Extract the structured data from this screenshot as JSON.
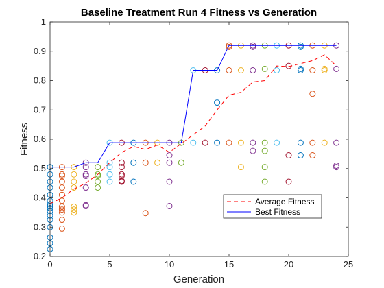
{
  "chart_data": {
    "type": "scatter",
    "title": "Baseline Treatment Run 4 Fitness vs Generation",
    "xlabel": "Generation",
    "ylabel": "Fitness",
    "xlim": [
      0,
      25
    ],
    "ylim": [
      0.2,
      1
    ],
    "xticks": [
      "0",
      "5",
      "10",
      "15",
      "20",
      "25"
    ],
    "yticks": [
      "0.2",
      "0.3",
      "0.4",
      "0.5",
      "0.6",
      "0.7",
      "0.8",
      "0.9",
      "1"
    ],
    "grid": false,
    "legend_position": "lower-right",
    "series": [
      {
        "name": "Average Fitness",
        "style": "dashed",
        "color": "#ff0000",
        "x": [
          0,
          1,
          2,
          3,
          4,
          5,
          6,
          7,
          8,
          9,
          10,
          11,
          12,
          13,
          14,
          15,
          16,
          17,
          18,
          19,
          20,
          21,
          22,
          23,
          24
        ],
        "y": [
          0.38,
          0.4,
          0.43,
          0.45,
          0.48,
          0.52,
          0.555,
          0.575,
          0.565,
          0.58,
          0.555,
          0.585,
          0.615,
          0.645,
          0.7,
          0.75,
          0.76,
          0.795,
          0.8,
          0.85,
          0.848,
          0.858,
          0.868,
          0.888,
          0.85
        ]
      },
      {
        "name": "Best Fitness",
        "style": "solid",
        "color": "#0000ff",
        "x": [
          0,
          1,
          2,
          3,
          4,
          5,
          6,
          7,
          8,
          9,
          10,
          11,
          12,
          13,
          14,
          15,
          16,
          17,
          18,
          19,
          20,
          21,
          22,
          23,
          24
        ],
        "y": [
          0.505,
          0.505,
          0.505,
          0.52,
          0.52,
          0.588,
          0.588,
          0.588,
          0.588,
          0.588,
          0.588,
          0.588,
          0.835,
          0.835,
          0.835,
          0.92,
          0.92,
          0.92,
          0.92,
          0.92,
          0.92,
          0.92,
          0.92,
          0.92,
          0.92
        ]
      }
    ],
    "population_points": [
      {
        "x": 0,
        "y": 0.505,
        "c": "#0072bd"
      },
      {
        "x": 0,
        "y": 0.48,
        "c": "#0072bd"
      },
      {
        "x": 0,
        "y": 0.455,
        "c": "#0072bd"
      },
      {
        "x": 0,
        "y": 0.435,
        "c": "#0072bd"
      },
      {
        "x": 0,
        "y": 0.41,
        "c": "#0072bd"
      },
      {
        "x": 0,
        "y": 0.39,
        "c": "#0072bd"
      },
      {
        "x": 0,
        "y": 0.378,
        "c": "#0072bd"
      },
      {
        "x": 0,
        "y": 0.372,
        "c": "#0072bd"
      },
      {
        "x": 0,
        "y": 0.365,
        "c": "#0072bd"
      },
      {
        "x": 0,
        "y": 0.355,
        "c": "#0072bd"
      },
      {
        "x": 0,
        "y": 0.34,
        "c": "#0072bd"
      },
      {
        "x": 0,
        "y": 0.325,
        "c": "#0072bd"
      },
      {
        "x": 0,
        "y": 0.3,
        "c": "#0072bd"
      },
      {
        "x": 0,
        "y": 0.265,
        "c": "#0072bd"
      },
      {
        "x": 0,
        "y": 0.245,
        "c": "#0072bd"
      },
      {
        "x": 0,
        "y": 0.225,
        "c": "#0072bd"
      },
      {
        "x": 1,
        "y": 0.505,
        "c": "#d95319"
      },
      {
        "x": 1,
        "y": 0.48,
        "c": "#d95319"
      },
      {
        "x": 1,
        "y": 0.475,
        "c": "#d95319"
      },
      {
        "x": 1,
        "y": 0.455,
        "c": "#d95319"
      },
      {
        "x": 1,
        "y": 0.435,
        "c": "#d95319"
      },
      {
        "x": 1,
        "y": 0.41,
        "c": "#d95319"
      },
      {
        "x": 1,
        "y": 0.39,
        "c": "#d95319"
      },
      {
        "x": 1,
        "y": 0.37,
        "c": "#d95319"
      },
      {
        "x": 1,
        "y": 0.36,
        "c": "#d95319"
      },
      {
        "x": 1,
        "y": 0.35,
        "c": "#d95319"
      },
      {
        "x": 1,
        "y": 0.325,
        "c": "#d95319"
      },
      {
        "x": 1,
        "y": 0.295,
        "c": "#d95319"
      },
      {
        "x": 2,
        "y": 0.505,
        "c": "#edb120"
      },
      {
        "x": 2,
        "y": 0.48,
        "c": "#edb120"
      },
      {
        "x": 2,
        "y": 0.455,
        "c": "#edb120"
      },
      {
        "x": 2,
        "y": 0.435,
        "c": "#edb120"
      },
      {
        "x": 2,
        "y": 0.37,
        "c": "#edb120"
      },
      {
        "x": 2,
        "y": 0.36,
        "c": "#edb120"
      },
      {
        "x": 2,
        "y": 0.35,
        "c": "#edb120"
      },
      {
        "x": 3,
        "y": 0.52,
        "c": "#7e2f8e"
      },
      {
        "x": 3,
        "y": 0.505,
        "c": "#7e2f8e"
      },
      {
        "x": 3,
        "y": 0.48,
        "c": "#7e2f8e"
      },
      {
        "x": 3,
        "y": 0.475,
        "c": "#7e2f8e"
      },
      {
        "x": 3,
        "y": 0.435,
        "c": "#7e2f8e"
      },
      {
        "x": 3,
        "y": 0.375,
        "c": "#7e2f8e"
      },
      {
        "x": 3,
        "y": 0.372,
        "c": "#7e2f8e"
      },
      {
        "x": 4,
        "y": 0.505,
        "c": "#77ac30"
      },
      {
        "x": 4,
        "y": 0.48,
        "c": "#77ac30"
      },
      {
        "x": 4,
        "y": 0.475,
        "c": "#77ac30"
      },
      {
        "x": 4,
        "y": 0.455,
        "c": "#77ac30"
      },
      {
        "x": 4,
        "y": 0.435,
        "c": "#77ac30"
      },
      {
        "x": 5,
        "y": 0.588,
        "c": "#4dbeee"
      },
      {
        "x": 5,
        "y": 0.52,
        "c": "#4dbeee"
      },
      {
        "x": 5,
        "y": 0.505,
        "c": "#4dbeee"
      },
      {
        "x": 5,
        "y": 0.48,
        "c": "#4dbeee"
      },
      {
        "x": 5,
        "y": 0.455,
        "c": "#4dbeee"
      },
      {
        "x": 6,
        "y": 0.588,
        "c": "#a2142f"
      },
      {
        "x": 6,
        "y": 0.52,
        "c": "#a2142f"
      },
      {
        "x": 6,
        "y": 0.505,
        "c": "#a2142f"
      },
      {
        "x": 6,
        "y": 0.48,
        "c": "#a2142f"
      },
      {
        "x": 6,
        "y": 0.475,
        "c": "#a2142f"
      },
      {
        "x": 6,
        "y": 0.458,
        "c": "#a2142f"
      },
      {
        "x": 6,
        "y": 0.455,
        "c": "#a2142f"
      },
      {
        "x": 7,
        "y": 0.588,
        "c": "#0072bd"
      },
      {
        "x": 7,
        "y": 0.52,
        "c": "#0072bd"
      },
      {
        "x": 7,
        "y": 0.455,
        "c": "#0072bd"
      },
      {
        "x": 8,
        "y": 0.588,
        "c": "#d95319"
      },
      {
        "x": 8,
        "y": 0.52,
        "c": "#d95319"
      },
      {
        "x": 8,
        "y": 0.348,
        "c": "#d95319"
      },
      {
        "x": 9,
        "y": 0.588,
        "c": "#edb120"
      },
      {
        "x": 9,
        "y": 0.52,
        "c": "#edb120"
      },
      {
        "x": 10,
        "y": 0.588,
        "c": "#7e2f8e"
      },
      {
        "x": 10,
        "y": 0.545,
        "c": "#7e2f8e"
      },
      {
        "x": 10,
        "y": 0.52,
        "c": "#7e2f8e"
      },
      {
        "x": 10,
        "y": 0.455,
        "c": "#7e2f8e"
      },
      {
        "x": 10,
        "y": 0.372,
        "c": "#7e2f8e"
      },
      {
        "x": 11,
        "y": 0.588,
        "c": "#77ac30"
      },
      {
        "x": 11,
        "y": 0.52,
        "c": "#77ac30"
      },
      {
        "x": 12,
        "y": 0.835,
        "c": "#4dbeee"
      },
      {
        "x": 12,
        "y": 0.588,
        "c": "#4dbeee"
      },
      {
        "x": 13,
        "y": 0.835,
        "c": "#a2142f"
      },
      {
        "x": 13,
        "y": 0.588,
        "c": "#a2142f"
      },
      {
        "x": 14,
        "y": 0.835,
        "c": "#0072bd"
      },
      {
        "x": 14,
        "y": 0.725,
        "c": "#0072bd"
      },
      {
        "x": 14,
        "y": 0.588,
        "c": "#0072bd"
      },
      {
        "x": 15,
        "y": 0.92,
        "c": "#d95319"
      },
      {
        "x": 15,
        "y": 0.915,
        "c": "#d95319"
      },
      {
        "x": 15,
        "y": 0.835,
        "c": "#d95319"
      },
      {
        "x": 15,
        "y": 0.588,
        "c": "#d95319"
      },
      {
        "x": 16,
        "y": 0.92,
        "c": "#edb120"
      },
      {
        "x": 16,
        "y": 0.835,
        "c": "#edb120"
      },
      {
        "x": 16,
        "y": 0.588,
        "c": "#edb120"
      },
      {
        "x": 16,
        "y": 0.505,
        "c": "#edb120"
      },
      {
        "x": 17,
        "y": 0.92,
        "c": "#7e2f8e"
      },
      {
        "x": 17,
        "y": 0.915,
        "c": "#7e2f8e"
      },
      {
        "x": 17,
        "y": 0.835,
        "c": "#7e2f8e"
      },
      {
        "x": 17,
        "y": 0.588,
        "c": "#7e2f8e"
      },
      {
        "x": 17,
        "y": 0.56,
        "c": "#7e2f8e"
      },
      {
        "x": 18,
        "y": 0.92,
        "c": "#77ac30"
      },
      {
        "x": 18,
        "y": 0.84,
        "c": "#77ac30"
      },
      {
        "x": 18,
        "y": 0.588,
        "c": "#77ac30"
      },
      {
        "x": 18,
        "y": 0.56,
        "c": "#77ac30"
      },
      {
        "x": 18,
        "y": 0.505,
        "c": "#77ac30"
      },
      {
        "x": 18,
        "y": 0.455,
        "c": "#77ac30"
      },
      {
        "x": 19,
        "y": 0.92,
        "c": "#4dbeee"
      },
      {
        "x": 19,
        "y": 0.835,
        "c": "#4dbeee"
      },
      {
        "x": 19,
        "y": 0.588,
        "c": "#4dbeee"
      },
      {
        "x": 20,
        "y": 0.92,
        "c": "#a2142f"
      },
      {
        "x": 20,
        "y": 0.85,
        "c": "#a2142f"
      },
      {
        "x": 20,
        "y": 0.545,
        "c": "#a2142f"
      },
      {
        "x": 20,
        "y": 0.455,
        "c": "#a2142f"
      },
      {
        "x": 21,
        "y": 0.92,
        "c": "#0072bd"
      },
      {
        "x": 21,
        "y": 0.915,
        "c": "#0072bd"
      },
      {
        "x": 21,
        "y": 0.84,
        "c": "#0072bd"
      },
      {
        "x": 21,
        "y": 0.835,
        "c": "#0072bd"
      },
      {
        "x": 21,
        "y": 0.588,
        "c": "#0072bd"
      },
      {
        "x": 21,
        "y": 0.545,
        "c": "#0072bd"
      },
      {
        "x": 22,
        "y": 0.92,
        "c": "#d95319"
      },
      {
        "x": 22,
        "y": 0.835,
        "c": "#d95319"
      },
      {
        "x": 22,
        "y": 0.755,
        "c": "#d95319"
      },
      {
        "x": 22,
        "y": 0.588,
        "c": "#d95319"
      },
      {
        "x": 22,
        "y": 0.545,
        "c": "#d95319"
      },
      {
        "x": 23,
        "y": 0.92,
        "c": "#edb120"
      },
      {
        "x": 23,
        "y": 0.84,
        "c": "#edb120"
      },
      {
        "x": 23,
        "y": 0.835,
        "c": "#edb120"
      },
      {
        "x": 23,
        "y": 0.588,
        "c": "#edb120"
      },
      {
        "x": 24,
        "y": 0.92,
        "c": "#7e2f8e"
      },
      {
        "x": 24,
        "y": 0.84,
        "c": "#7e2f8e"
      },
      {
        "x": 24,
        "y": 0.588,
        "c": "#7e2f8e"
      },
      {
        "x": 24,
        "y": 0.51,
        "c": "#7e2f8e"
      },
      {
        "x": 24,
        "y": 0.505,
        "c": "#7e2f8e"
      }
    ]
  }
}
